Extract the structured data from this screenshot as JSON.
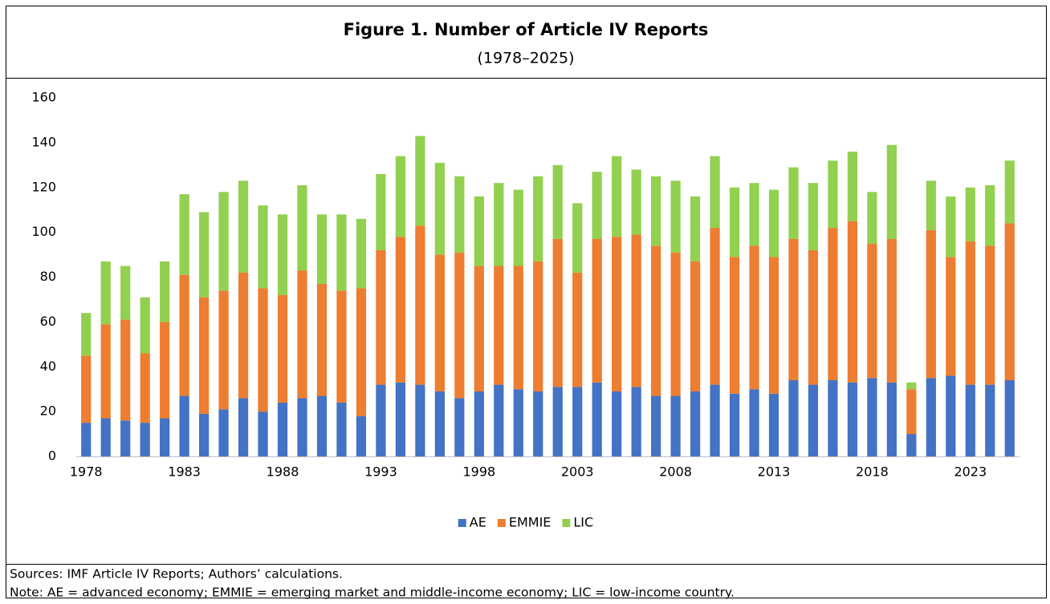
{
  "chart_data": {
    "type": "stacked_bar",
    "title": "Figure 1. Number of Article IV Reports",
    "subtitle": "(1978–2025)",
    "categories": [
      "1978",
      null,
      null,
      null,
      null,
      "1983",
      null,
      null,
      null,
      null,
      "1988",
      null,
      null,
      null,
      null,
      "1993",
      null,
      null,
      null,
      null,
      "1998",
      null,
      null,
      null,
      null,
      "2003",
      null,
      null,
      null,
      null,
      "2008",
      null,
      null,
      null,
      null,
      "2013",
      null,
      null,
      null,
      null,
      "2018",
      null,
      null,
      null,
      null,
      "2023",
      null,
      null
    ],
    "series": [
      {
        "name": "AE",
        "color": "#4472c4",
        "values": [
          15,
          17,
          16,
          15,
          17,
          27,
          19,
          21,
          26,
          20,
          24,
          26,
          27,
          24,
          18,
          32,
          33,
          32,
          29,
          26,
          29,
          32,
          30,
          29,
          31,
          31,
          33,
          29,
          31,
          27,
          27,
          29,
          32,
          28,
          30,
          28,
          34,
          32,
          34,
          33,
          35,
          33,
          10,
          35,
          36,
          32,
          32,
          34
        ]
      },
      {
        "name": "EMMIE",
        "color": "#ed7d31",
        "values": [
          30,
          42,
          45,
          31,
          43,
          54,
          52,
          53,
          56,
          55,
          48,
          57,
          50,
          50,
          57,
          60,
          65,
          71,
          61,
          65,
          56,
          53,
          55,
          58,
          66,
          51,
          64,
          69,
          68,
          67,
          64,
          58,
          70,
          61,
          64,
          61,
          63,
          60,
          68,
          72,
          60,
          64,
          20,
          66,
          53,
          64,
          62,
          70
        ]
      },
      {
        "name": "LIC",
        "color": "#92d050",
        "values": [
          19,
          28,
          24,
          25,
          27,
          36,
          38,
          44,
          41,
          37,
          36,
          38,
          31,
          34,
          31,
          34,
          36,
          40,
          41,
          34,
          31,
          37,
          34,
          38,
          33,
          31,
          30,
          36,
          29,
          31,
          32,
          29,
          32,
          31,
          28,
          30,
          32,
          30,
          30,
          31,
          23,
          42,
          3,
          22,
          27,
          24,
          27,
          28
        ]
      }
    ],
    "ylim": [
      0,
      160
    ],
    "yticks": [
      0,
      20,
      40,
      60,
      80,
      100,
      120,
      140,
      160
    ],
    "legend": "bottom",
    "notes": [
      "Sources: IMF Article IV Reports; Authors’ calculations.",
      "Note: AE = advanced economy; EMMIE = emerging market and middle-income economy; LIC = low-income country."
    ]
  }
}
